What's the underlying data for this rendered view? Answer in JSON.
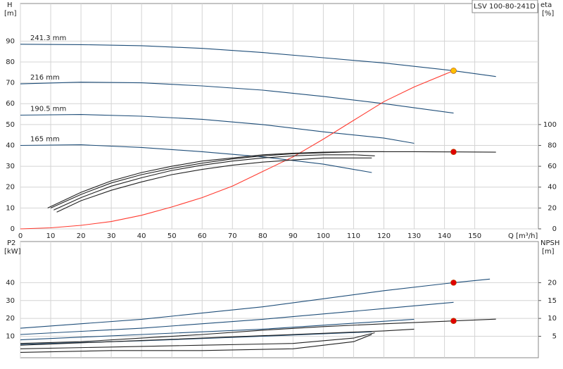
{
  "chart_data": [
    {
      "type": "line",
      "title": "LSV 100-80-241D",
      "ylabel": "H",
      "yunit": "[m]",
      "y2label": "eta",
      "y2unit": "[%]",
      "xlabel": "Q [m³/h]",
      "xlim": [
        0,
        171
      ],
      "ylim": [
        0,
        108
      ],
      "y2lim": [
        0,
        216
      ],
      "grid": true,
      "xticks": [
        0,
        10,
        20,
        30,
        40,
        50,
        60,
        70,
        80,
        90,
        100,
        110,
        120,
        130,
        140,
        150
      ],
      "yticks": [
        0,
        10,
        20,
        30,
        40,
        50,
        60,
        70,
        80,
        90
      ],
      "y2ticks": [
        0,
        20,
        40,
        60,
        80,
        100
      ],
      "series": [
        {
          "name": "241.3 mm",
          "color": "#1f4e79",
          "x": [
            0,
            20,
            40,
            60,
            80,
            100,
            120,
            143,
            157
          ],
          "values": [
            88.5,
            88.3,
            87.8,
            86.5,
            84.5,
            82,
            79.5,
            75.8,
            73
          ]
        },
        {
          "name": "216 mm",
          "color": "#1f4e79",
          "x": [
            0,
            20,
            40,
            60,
            80,
            100,
            120,
            143
          ],
          "values": [
            69.5,
            70.3,
            70,
            68.5,
            66.5,
            63.5,
            60,
            55.5
          ]
        },
        {
          "name": "190.5 mm",
          "color": "#1f4e79",
          "x": [
            0,
            20,
            40,
            60,
            80,
            100,
            120,
            130
          ],
          "values": [
            54.5,
            54.8,
            54,
            52.5,
            50,
            46.5,
            43.5,
            41
          ]
        },
        {
          "name": "165 mm",
          "color": "#1f4e79",
          "x": [
            0,
            20,
            40,
            60,
            80,
            100,
            116
          ],
          "values": [
            40,
            40.3,
            39,
            37,
            34.5,
            31,
            27
          ]
        },
        {
          "color": "#ff3b30",
          "x": [
            0,
            10,
            20,
            30,
            40,
            50,
            60,
            70,
            80,
            90,
            100,
            110,
            120,
            130,
            143
          ],
          "values": [
            0,
            0.5,
            1.7,
            3.5,
            6.5,
            10.5,
            15,
            20.5,
            27.5,
            34.5,
            43,
            52,
            61,
            68,
            75.8
          ]
        },
        {
          "color": "#222222",
          "axis": "y2",
          "x": [
            9,
            20,
            30,
            40,
            50,
            60,
            70,
            80,
            90,
            100,
            110,
            120,
            130,
            143,
            157
          ],
          "values": [
            20,
            35,
            46,
            54,
            60,
            65,
            68,
            71,
            72.5,
            73.5,
            74,
            74,
            74,
            73.8,
            73.5
          ]
        },
        {
          "color": "#222222",
          "axis": "y2",
          "x": [
            10,
            20,
            30,
            40,
            50,
            60,
            70,
            80,
            90,
            100,
            110,
            120
          ],
          "values": [
            20,
            33,
            44,
            52,
            58,
            63,
            67,
            70,
            72,
            73,
            74,
            74
          ]
        },
        {
          "color": "#222222",
          "axis": "y2",
          "x": [
            11,
            20,
            30,
            40,
            50,
            60,
            70,
            80,
            90,
            100,
            110,
            117
          ],
          "values": [
            18,
            30,
            41,
            49,
            56,
            61,
            65,
            68,
            70,
            71,
            71,
            70
          ]
        },
        {
          "color": "#222222",
          "axis": "y2",
          "x": [
            12,
            20,
            30,
            40,
            50,
            60,
            70,
            80,
            90,
            100,
            110,
            116
          ],
          "values": [
            16,
            27,
            37,
            45,
            52,
            57,
            61,
            64,
            66,
            68,
            68,
            68
          ]
        },
        {
          "color": "#ffc000",
          "marker": "circle",
          "x": [
            143
          ],
          "values": [
            75.8
          ]
        },
        {
          "color": "#e00000",
          "marker": "circle",
          "axis": "y2",
          "x": [
            143
          ],
          "values": [
            73.8
          ]
        }
      ]
    },
    {
      "type": "line",
      "ylabel": "P2",
      "yunit": "[kW]",
      "y2label": "NPSH",
      "y2unit": "[m]",
      "xlim": [
        0,
        171
      ],
      "ylim": [
        -2,
        63
      ],
      "y2lim": [
        -1,
        31.5
      ],
      "grid": true,
      "xtick_labels": false,
      "xticks": [
        0,
        10,
        20,
        30,
        40,
        50,
        60,
        70,
        80,
        90,
        100,
        110,
        120,
        130,
        140,
        150
      ],
      "yticks": [
        10,
        20,
        30,
        40
      ],
      "y2ticks": [
        5,
        10,
        15,
        20
      ],
      "series": [
        {
          "color": "#1f4e79",
          "x": [
            0,
            40,
            80,
            120,
            143,
            155
          ],
          "values": [
            14.5,
            19.5,
            26.5,
            35.5,
            40,
            42
          ]
        },
        {
          "color": "#1f4e79",
          "x": [
            0,
            40,
            80,
            120,
            143
          ],
          "values": [
            11,
            14.5,
            19.5,
            25.5,
            29
          ]
        },
        {
          "color": "#1f4e79",
          "x": [
            0,
            40,
            80,
            130
          ],
          "values": [
            8,
            11,
            14,
            19.5
          ]
        },
        {
          "color": "#1f4e79",
          "x": [
            0,
            40,
            80,
            116
          ],
          "values": [
            5.5,
            7.5,
            10,
            12.5
          ]
        },
        {
          "color": "#222222",
          "axis": "y2",
          "x": [
            0,
            20,
            40,
            60,
            80,
            100,
            120,
            143,
            157
          ],
          "values": [
            3,
            3.5,
            4.5,
            5.5,
            6.7,
            7.7,
            8.5,
            9.3,
            9.8
          ]
        },
        {
          "color": "#222222",
          "axis": "y2",
          "x": [
            0,
            30,
            60,
            90,
            120,
            130
          ],
          "values": [
            2.5,
            3.5,
            4.5,
            5.5,
            6.5,
            7
          ]
        },
        {
          "color": "#222222",
          "axis": "y2",
          "x": [
            0,
            30,
            60,
            90,
            110,
            117
          ],
          "values": [
            1.5,
            2,
            2.5,
            3,
            4.5,
            6
          ]
        },
        {
          "color": "#222222",
          "axis": "y2",
          "x": [
            0,
            30,
            60,
            90,
            110,
            116
          ],
          "values": [
            0.5,
            1,
            1,
            1.5,
            3.5,
            5.5
          ]
        },
        {
          "color": "#e00000",
          "marker": "circle",
          "x": [
            143
          ],
          "values": [
            40
          ]
        },
        {
          "color": "#e00000",
          "marker": "circle",
          "axis": "y2",
          "x": [
            143
          ],
          "values": [
            9.3
          ]
        }
      ]
    }
  ]
}
